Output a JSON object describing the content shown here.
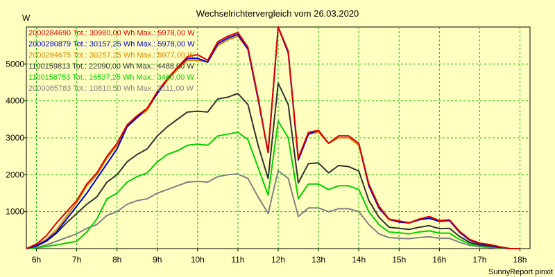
{
  "chart_data": {
    "type": "line",
    "title": "Wechselrichtervergleich vom 26.03.2020",
    "ylabel": "W",
    "xlabel": "",
    "footer": "SunnyReport pinxit",
    "ylim": [
      0,
      6000
    ],
    "xlim": [
      5.75,
      18.25
    ],
    "yticks": [
      1000,
      2000,
      3000,
      4000,
      5000
    ],
    "ytick_labels": [
      "1000",
      "2000",
      "3000",
      "4000",
      "5000"
    ],
    "xticks": [
      6,
      7,
      8,
      9,
      10,
      11,
      12,
      13,
      14,
      15,
      16,
      17,
      18
    ],
    "xtick_labels": [
      "6h",
      "7h",
      "8h",
      "9h",
      "10h",
      "11h",
      "12h",
      "13h",
      "14h",
      "15h",
      "16h",
      "17h",
      "18h"
    ],
    "grid": true,
    "legend_position": "top-left",
    "x": [
      5.75,
      6.0,
      6.25,
      6.5,
      6.75,
      7.0,
      7.25,
      7.5,
      7.75,
      8.0,
      8.25,
      8.5,
      8.75,
      9.0,
      9.25,
      9.5,
      9.75,
      10.0,
      10.25,
      10.5,
      10.75,
      11.0,
      11.25,
      11.5,
      11.75,
      12.0,
      12.25,
      12.5,
      12.75,
      13.0,
      13.25,
      13.5,
      13.75,
      14.0,
      14.25,
      14.5,
      14.75,
      15.0,
      15.25,
      15.5,
      15.75,
      16.0,
      16.25,
      16.5,
      16.75,
      17.0,
      17.25,
      17.5,
      17.75,
      18.0
    ],
    "series": [
      {
        "name": "2000284690",
        "label": "2000284690 Tot.: 30980,00 Wh Max.: 5978,00 W",
        "color": "#e00000",
        "values": [
          0,
          120,
          350,
          700,
          1000,
          1300,
          1750,
          2050,
          2500,
          2850,
          3350,
          3600,
          3800,
          4250,
          4600,
          4900,
          5200,
          5250,
          5100,
          5600,
          5750,
          5850,
          5450,
          4100,
          2600,
          6000,
          5350,
          2450,
          3150,
          3200,
          2850,
          3050,
          3050,
          2850,
          1750,
          1150,
          800,
          750,
          700,
          800,
          870,
          760,
          780,
          470,
          250,
          150,
          110,
          50,
          0,
          0
        ]
      },
      {
        "name": "2000280879",
        "label": "2000280879 Tot.: 30157,25 Wh Max.: 5978,00 W",
        "color": "#0000d0",
        "values": [
          0,
          80,
          220,
          450,
          800,
          1150,
          1500,
          1900,
          2300,
          2700,
          3300,
          3550,
          3800,
          4200,
          4600,
          4900,
          5150,
          5150,
          5050,
          5550,
          5700,
          5800,
          5400,
          4050,
          2600,
          6000,
          5300,
          2400,
          3100,
          3200,
          2850,
          3050,
          3050,
          2850,
          1700,
          1100,
          800,
          720,
          700,
          780,
          820,
          740,
          760,
          440,
          230,
          130,
          90,
          40,
          0,
          0
        ]
      },
      {
        "name": "2000284675",
        "label": "2000284675 Tot.: 30257,25 Wh Max.: 5977,00 W",
        "color": "#e08000",
        "values": [
          0,
          90,
          250,
          520,
          880,
          1250,
          1700,
          2000,
          2450,
          2800,
          3300,
          3550,
          3750,
          4200,
          4550,
          4850,
          5100,
          5100,
          5050,
          5500,
          5650,
          5750,
          5400,
          4050,
          2600,
          5980,
          5300,
          2400,
          3100,
          3150,
          2850,
          3000,
          3000,
          2800,
          1700,
          1100,
          780,
          720,
          690,
          780,
          850,
          740,
          760,
          450,
          230,
          140,
          100,
          40,
          0,
          0
        ]
      },
      {
        "name": "1100159813",
        "label": "1100159813 Tot.: 22090,00 Wh Max.: 4488,00 W",
        "color": "#303030",
        "values": [
          0,
          70,
          200,
          420,
          700,
          950,
          1200,
          1400,
          1800,
          2000,
          2350,
          2550,
          2700,
          3050,
          3300,
          3500,
          3700,
          3720,
          3700,
          4050,
          4100,
          4200,
          3900,
          2800,
          1900,
          4480,
          3900,
          1780,
          2300,
          2320,
          2050,
          2250,
          2220,
          2100,
          1300,
          850,
          580,
          550,
          520,
          580,
          620,
          540,
          550,
          330,
          170,
          100,
          70,
          30,
          0,
          0
        ]
      },
      {
        "name": "1100158753",
        "label": "1100158753 Tot.: 16537,25 Wh Max.: 3460,00 W",
        "color": "#00d000",
        "values": [
          0,
          20,
          60,
          100,
          150,
          200,
          450,
          800,
          1350,
          1500,
          1800,
          1950,
          2050,
          2350,
          2550,
          2650,
          2800,
          2830,
          2800,
          3050,
          3100,
          3150,
          2950,
          2200,
          1450,
          3450,
          3000,
          1350,
          1750,
          1750,
          1600,
          1700,
          1700,
          1600,
          1000,
          650,
          450,
          430,
          400,
          450,
          480,
          420,
          420,
          250,
          130,
          80,
          50,
          20,
          0,
          0
        ]
      },
      {
        "name": "2000065783",
        "label": "2000065783 Tot.: 10810,50 Wh Max.: 2111,00 W",
        "color": "#808080",
        "values": [
          0,
          30,
          100,
          200,
          300,
          400,
          550,
          650,
          900,
          1000,
          1200,
          1300,
          1350,
          1500,
          1600,
          1700,
          1800,
          1820,
          1800,
          1950,
          2000,
          2020,
          1900,
          1400,
          950,
          2110,
          1900,
          870,
          1100,
          1100,
          1000,
          1080,
          1080,
          1000,
          650,
          400,
          300,
          280,
          270,
          300,
          320,
          280,
          280,
          170,
          90,
          50,
          30,
          10,
          0,
          0
        ]
      }
    ]
  }
}
